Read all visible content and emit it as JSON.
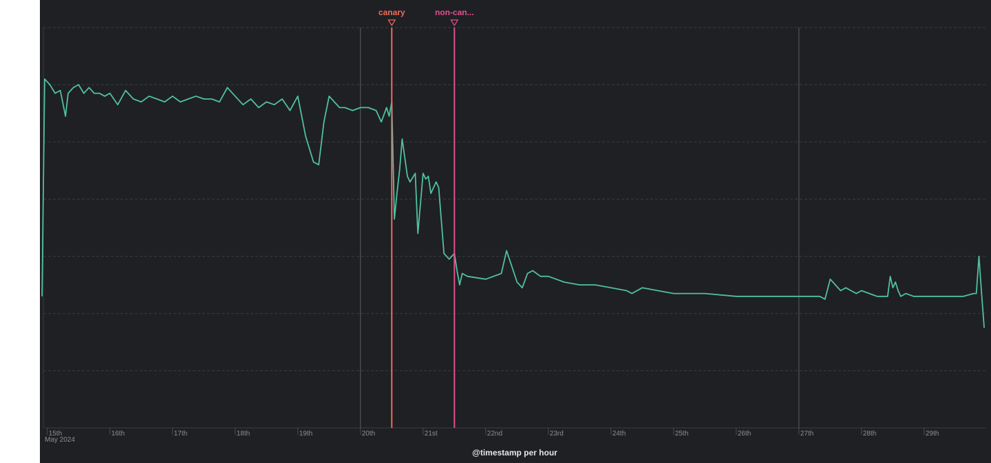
{
  "chart_data": {
    "type": "line",
    "x_title": "@timestamp per hour",
    "x_month_label": "May 2024",
    "x_ticks": [
      "15th",
      "16th",
      "17th",
      "18th",
      "19th",
      "20th",
      "21st",
      "22nd",
      "23rd",
      "24th",
      "25th",
      "26th",
      "27th",
      "28th",
      "29th"
    ],
    "x_tick_values": [
      "2024-05-15",
      "2024-05-16",
      "2024-05-17",
      "2024-05-18",
      "2024-05-19",
      "2024-05-20",
      "2024-05-21",
      "2024-05-22",
      "2024-05-23",
      "2024-05-24",
      "2024-05-25",
      "2024-05-26",
      "2024-05-27",
      "2024-05-28",
      "2024-05-29"
    ],
    "xlim": [
      "2024-05-14T22:30",
      "2024-05-29T23:30"
    ],
    "y_ticks_visible": false,
    "ylim": [
      0,
      7
    ],
    "grid": "horizontal dashed",
    "reference_lines_at": [
      "2024-05-20T00:00",
      "2024-05-27T00:00"
    ],
    "annotations": [
      {
        "label": "canary",
        "x": "2024-05-20T12:00",
        "color": "#f06b5a"
      },
      {
        "label": "non-can...",
        "x": "2024-05-21T12:00",
        "color": "#e2508f"
      }
    ],
    "series": [
      {
        "color": "#4fc2a0",
        "x": [
          "2024-05-14T22:00",
          "2024-05-14T23:00",
          "2024-05-15T01:00",
          "2024-05-15T03:00",
          "2024-05-15T05:00",
          "2024-05-15T07:00",
          "2024-05-15T08:00",
          "2024-05-15T10:00",
          "2024-05-15T12:00",
          "2024-05-15T14:00",
          "2024-05-15T16:00",
          "2024-05-15T18:00",
          "2024-05-15T20:00",
          "2024-05-15T22:00",
          "2024-05-16T00:00",
          "2024-05-16T03:00",
          "2024-05-16T06:00",
          "2024-05-16T09:00",
          "2024-05-16T12:00",
          "2024-05-16T15:00",
          "2024-05-16T18:00",
          "2024-05-16T21:00",
          "2024-05-17T00:00",
          "2024-05-17T03:00",
          "2024-05-17T06:00",
          "2024-05-17T09:00",
          "2024-05-17T12:00",
          "2024-05-17T15:00",
          "2024-05-17T18:00",
          "2024-05-17T21:00",
          "2024-05-18T00:00",
          "2024-05-18T03:00",
          "2024-05-18T06:00",
          "2024-05-18T09:00",
          "2024-05-18T12:00",
          "2024-05-18T15:00",
          "2024-05-18T18:00",
          "2024-05-18T21:00",
          "2024-05-19T00:00",
          "2024-05-19T03:00",
          "2024-05-19T06:00",
          "2024-05-19T08:00",
          "2024-05-19T10:00",
          "2024-05-19T12:00",
          "2024-05-19T14:00",
          "2024-05-19T16:00",
          "2024-05-19T18:00",
          "2024-05-19T21:00",
          "2024-05-20T00:00",
          "2024-05-20T03:00",
          "2024-05-20T06:00",
          "2024-05-20T08:00",
          "2024-05-20T10:00",
          "2024-05-20T11:00",
          "2024-05-20T12:00",
          "2024-05-20T13:00",
          "2024-05-20T14:00",
          "2024-05-20T15:00",
          "2024-05-20T16:00",
          "2024-05-20T18:00",
          "2024-05-20T19:00",
          "2024-05-20T21:00",
          "2024-05-20T22:00",
          "2024-05-21T00:00",
          "2024-05-21T01:00",
          "2024-05-21T02:00",
          "2024-05-21T03:00",
          "2024-05-21T05:00",
          "2024-05-21T06:00",
          "2024-05-21T08:00",
          "2024-05-21T10:00",
          "2024-05-21T12:00",
          "2024-05-21T13:00",
          "2024-05-21T14:00",
          "2024-05-21T15:00",
          "2024-05-21T17:00",
          "2024-05-22T00:00",
          "2024-05-22T06:00",
          "2024-05-22T08:00",
          "2024-05-22T12:00",
          "2024-05-22T14:00",
          "2024-05-22T16:00",
          "2024-05-22T18:00",
          "2024-05-22T21:00",
          "2024-05-23T00:00",
          "2024-05-23T06:00",
          "2024-05-23T12:00",
          "2024-05-23T18:00",
          "2024-05-24T00:00",
          "2024-05-24T06:00",
          "2024-05-24T08:00",
          "2024-05-24T12:00",
          "2024-05-24T18:00",
          "2024-05-25T00:00",
          "2024-05-25T12:00",
          "2024-05-26T00:00",
          "2024-05-26T12:00",
          "2024-05-27T00:00",
          "2024-05-27T08:00",
          "2024-05-27T10:00",
          "2024-05-27T12:00",
          "2024-05-27T13:00",
          "2024-05-27T14:00",
          "2024-05-27T16:00",
          "2024-05-27T18:00",
          "2024-05-27T20:00",
          "2024-05-27T22:00",
          "2024-05-28T00:00",
          "2024-05-28T06:00",
          "2024-05-28T10:00",
          "2024-05-28T11:00",
          "2024-05-28T12:00",
          "2024-05-28T13:00",
          "2024-05-28T14:00",
          "2024-05-28T15:00",
          "2024-05-28T17:00",
          "2024-05-28T20:00",
          "2024-05-28T23:00",
          "2024-05-29T03:00",
          "2024-05-29T09:00",
          "2024-05-29T15:00",
          "2024-05-29T19:00",
          "2024-05-29T20:00",
          "2024-05-29T21:00",
          "2024-05-29T22:00",
          "2024-05-29T23:00"
        ],
        "y": [
          2.3,
          6.1,
          6.0,
          5.85,
          5.9,
          5.45,
          5.85,
          5.95,
          6.0,
          5.85,
          5.95,
          5.85,
          5.85,
          5.8,
          5.85,
          5.65,
          5.9,
          5.75,
          5.7,
          5.8,
          5.75,
          5.7,
          5.8,
          5.7,
          5.75,
          5.8,
          5.75,
          5.75,
          5.7,
          5.95,
          5.8,
          5.65,
          5.75,
          5.6,
          5.7,
          5.65,
          5.75,
          5.55,
          5.8,
          5.1,
          4.65,
          4.6,
          5.35,
          5.8,
          5.7,
          5.6,
          5.6,
          5.55,
          5.6,
          5.6,
          5.55,
          5.35,
          5.6,
          5.45,
          5.7,
          3.65,
          4.1,
          4.5,
          5.05,
          4.4,
          4.3,
          4.45,
          3.4,
          4.45,
          4.35,
          4.4,
          4.1,
          4.3,
          4.2,
          3.05,
          2.95,
          3.05,
          2.75,
          2.5,
          2.7,
          2.65,
          2.6,
          2.7,
          3.1,
          2.55,
          2.45,
          2.7,
          2.75,
          2.65,
          2.65,
          2.55,
          2.5,
          2.5,
          2.45,
          2.4,
          2.35,
          2.45,
          2.4,
          2.35,
          2.35,
          2.3,
          2.3,
          2.3,
          2.3,
          2.25,
          2.6,
          2.55,
          2.5,
          2.4,
          2.45,
          2.4,
          2.35,
          2.4,
          2.3,
          2.3,
          2.65,
          2.45,
          2.55,
          2.4,
          2.3,
          2.35,
          2.3,
          2.3,
          2.3,
          2.3,
          2.3,
          2.35,
          2.35,
          3.0,
          2.35,
          1.75
        ]
      }
    ]
  }
}
